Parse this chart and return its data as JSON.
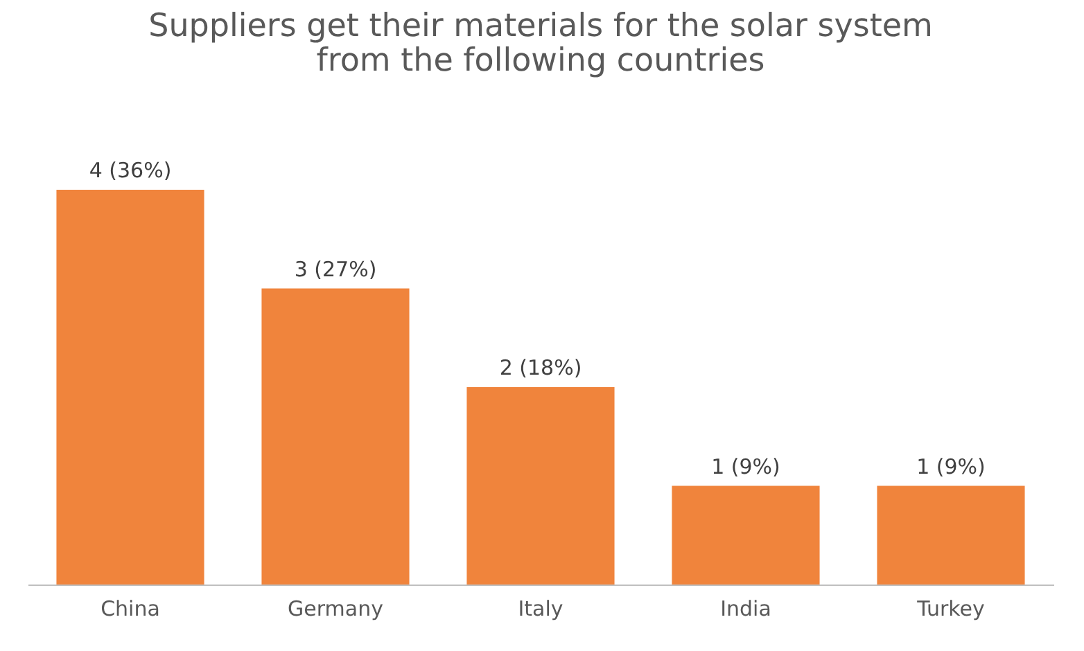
{
  "chart_data": {
    "type": "bar",
    "title": "Suppliers get their materials for the solar system from the following countries",
    "categories": [
      "China",
      "Germany",
      "Italy",
      "India",
      "Turkey"
    ],
    "values": [
      4,
      3,
      2,
      1,
      1
    ],
    "value_labels": [
      "4 (36%)",
      "3 (27%)",
      "2 (18%)",
      "1 (9%)",
      "1 (9%)"
    ],
    "color": "#f0843c"
  }
}
